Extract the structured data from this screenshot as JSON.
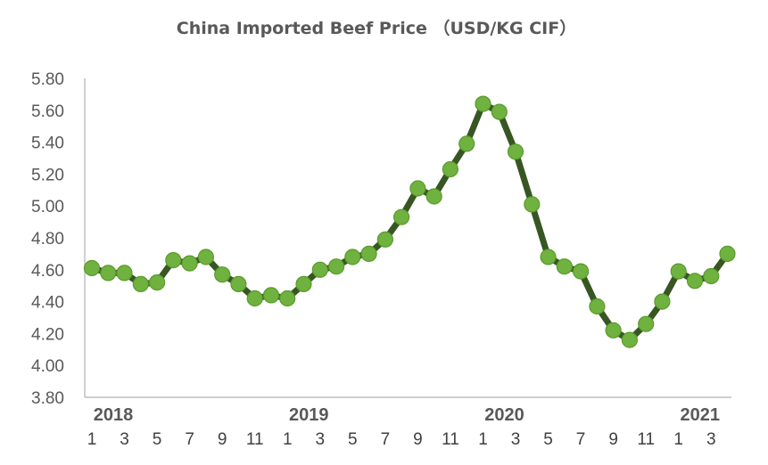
{
  "chart_data": {
    "type": "line",
    "title": "China Imported Beef Price （USD/KG CIF）",
    "ylim": [
      3.8,
      5.8
    ],
    "y_ticks": [
      "3.80",
      "4.00",
      "4.20",
      "4.40",
      "4.60",
      "4.80",
      "5.00",
      "5.20",
      "5.40",
      "5.60",
      "5.80"
    ],
    "x_tick_labels": [
      "1",
      "3",
      "5",
      "7",
      "9",
      "11",
      "1",
      "3",
      "5",
      "7",
      "9",
      "11",
      "1",
      "3",
      "5",
      "7",
      "9",
      "11",
      "1",
      "3"
    ],
    "year_labels": [
      "2018",
      "2019",
      "2020",
      "2021"
    ],
    "x": [
      "2018-01",
      "2018-02",
      "2018-03",
      "2018-04",
      "2018-05",
      "2018-06",
      "2018-07",
      "2018-08",
      "2018-09",
      "2018-10",
      "2018-11",
      "2018-12",
      "2019-01",
      "2019-02",
      "2019-03",
      "2019-04",
      "2019-05",
      "2019-06",
      "2019-07",
      "2019-08",
      "2019-09",
      "2019-10",
      "2019-11",
      "2019-12",
      "2020-01",
      "2020-02",
      "2020-03",
      "2020-04",
      "2020-05",
      "2020-06",
      "2020-07",
      "2020-08",
      "2020-09",
      "2020-10",
      "2020-11",
      "2020-12",
      "2021-01",
      "2021-02",
      "2021-03",
      "2021-04"
    ],
    "series": [
      {
        "values": [
          4.61,
          4.58,
          4.58,
          4.51,
          4.52,
          4.66,
          4.64,
          4.68,
          4.57,
          4.51,
          4.42,
          4.44,
          4.42,
          4.51,
          4.6,
          4.62,
          4.68,
          4.7,
          4.79,
          4.93,
          5.11,
          5.06,
          5.23,
          5.39,
          5.64,
          5.59,
          5.34,
          5.01,
          4.68,
          4.62,
          4.59,
          4.37,
          4.22,
          4.16,
          4.26,
          4.4,
          4.59,
          4.53,
          4.56,
          4.7
        ]
      }
    ],
    "colors": {
      "line": "#375623",
      "marker": "#70b23f",
      "axis": "#bfbfbf"
    },
    "grid": false,
    "legend": "none"
  }
}
